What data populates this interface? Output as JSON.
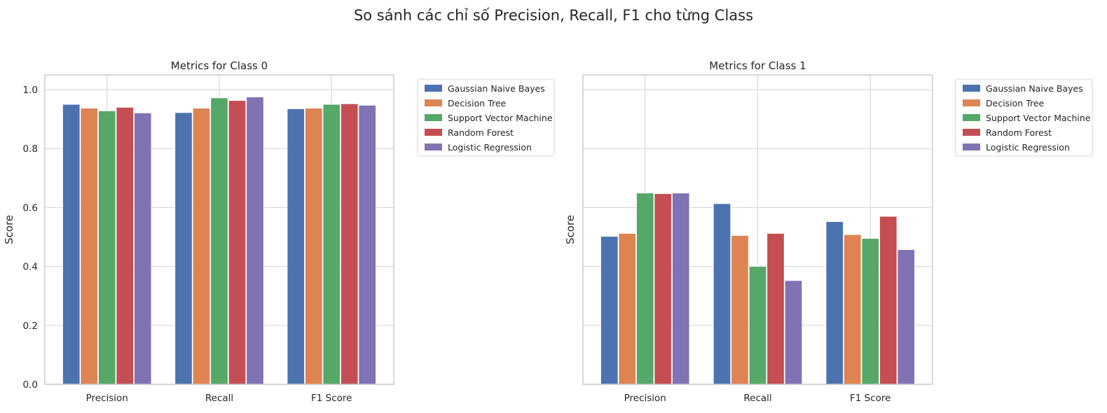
{
  "suptitle": "So sánh các chỉ số Precision, Recall, F1 cho từng Class",
  "colors": [
    "#4c72b0",
    "#dd8452",
    "#55a868",
    "#c44e52",
    "#8172b3"
  ],
  "chart_data": [
    {
      "type": "bar",
      "title": "Metrics for Class 0",
      "ylabel": "Score",
      "ylim": [
        0,
        1.05
      ],
      "yticks": [
        "0.0",
        "0.2",
        "0.4",
        "0.6",
        "0.8",
        "1.0"
      ],
      "show_ytick_labels": true,
      "grid": true,
      "legend": "upper-right-outside",
      "categories": [
        "Precision",
        "Recall",
        "F1 Score"
      ],
      "series": [
        {
          "name": "Gaussian Naive Bayes",
          "values": [
            0.95,
            0.922,
            0.935
          ]
        },
        {
          "name": "Decision Tree",
          "values": [
            0.937,
            0.937,
            0.937
          ]
        },
        {
          "name": "Support Vector Machine",
          "values": [
            0.928,
            0.972,
            0.95
          ]
        },
        {
          "name": "Random Forest",
          "values": [
            0.94,
            0.963,
            0.952
          ]
        },
        {
          "name": "Logistic Regression",
          "values": [
            0.921,
            0.975,
            0.947
          ]
        }
      ]
    },
    {
      "type": "bar",
      "title": "Metrics for Class 1",
      "ylabel": "Score",
      "ylim": [
        0,
        1.05
      ],
      "yticks": [
        "0.0",
        "0.2",
        "0.4",
        "0.6",
        "0.8",
        "1.0"
      ],
      "show_ytick_labels": false,
      "grid": true,
      "legend": "upper-right-outside",
      "categories": [
        "Precision",
        "Recall",
        "F1 Score"
      ],
      "series": [
        {
          "name": "Gaussian Naive Bayes",
          "values": [
            0.502,
            0.613,
            0.552
          ]
        },
        {
          "name": "Decision Tree",
          "values": [
            0.512,
            0.505,
            0.508
          ]
        },
        {
          "name": "Support Vector Machine",
          "values": [
            0.649,
            0.4,
            0.495
          ]
        },
        {
          "name": "Random Forest",
          "values": [
            0.647,
            0.512,
            0.57
          ]
        },
        {
          "name": "Logistic Regression",
          "values": [
            0.649,
            0.352,
            0.457
          ]
        }
      ]
    }
  ]
}
